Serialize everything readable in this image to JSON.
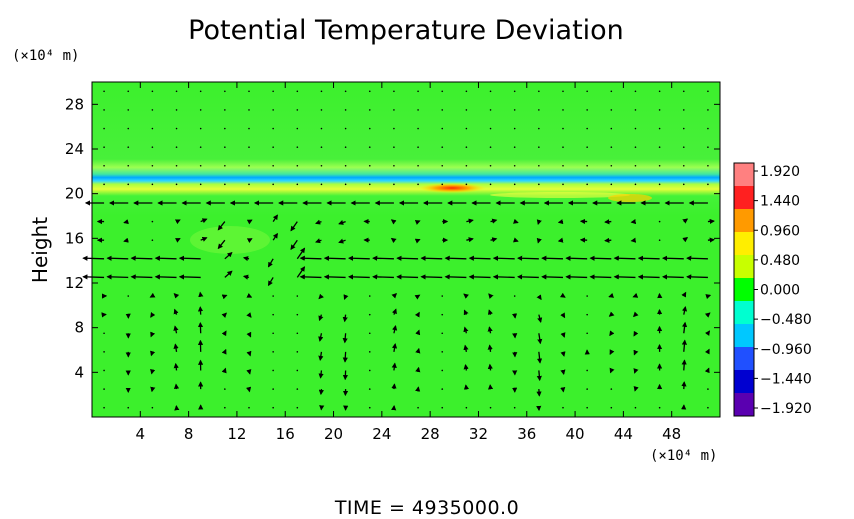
{
  "chart_data": {
    "type": "heatmap",
    "title": "Potential Temperature Deviation",
    "xlabel": "",
    "ylabel": "Height",
    "x_unit": "(×10⁴ m)",
    "y_unit": "(×10⁴ m)",
    "xlim": [
      0,
      52
    ],
    "ylim": [
      0,
      30
    ],
    "x_ticks": [
      4,
      8,
      12,
      16,
      20,
      24,
      28,
      32,
      36,
      40,
      44,
      48
    ],
    "x_tick_labels": [
      "4",
      "8",
      "12",
      "16",
      "20",
      "24",
      "28",
      "32",
      "36",
      "40",
      "44",
      "48"
    ],
    "y_ticks": [
      4,
      8,
      12,
      16,
      20,
      24,
      28
    ],
    "y_tick_labels": [
      "4",
      "8",
      "12",
      "16",
      "20",
      "24",
      "28"
    ],
    "colorbar": {
      "range": [
        -1.92,
        1.92
      ],
      "ticks": [
        1.92,
        1.44,
        0.96,
        0.48,
        0.0,
        -0.48,
        -0.96,
        -1.44,
        -1.92
      ],
      "tick_labels": [
        "1.920",
        "1.440",
        "0.960",
        "0.480",
        "0.000",
        "−0.480",
        "−0.960",
        "−1.440",
        "−1.920"
      ],
      "colors": [
        "#ff8080",
        "#ff2020",
        "#ff9a00",
        "#ffee00",
        "#c8ff00",
        "#00ff00",
        "#00ffd0",
        "#00c8ff",
        "#2050ff",
        "#0000d0",
        "#5a00b0"
      ]
    },
    "field_features": [
      {
        "feature": "background",
        "height": [
          0,
          30
        ],
        "value": 0.2
      },
      {
        "feature": "warm layer",
        "height": [
          20.8,
          21.8
        ],
        "value": 0.7
      },
      {
        "feature": "cool layer",
        "height": [
          20.0,
          20.8
        ],
        "value": -0.7
      },
      {
        "feature": "warm spot",
        "x": [
          28,
          32
        ],
        "height": [
          20,
          21
        ],
        "value": 1.9
      }
    ],
    "vector_field": {
      "description": "wind arrows on a regular grid",
      "x_range": [
        0,
        52
      ],
      "height_range": [
        0,
        30
      ],
      "strong_leftward_rows": [
        19,
        13.5
      ],
      "vortex_region_x": [
        10,
        18
      ]
    },
    "time_label": "TIME  =  4935000.0"
  }
}
